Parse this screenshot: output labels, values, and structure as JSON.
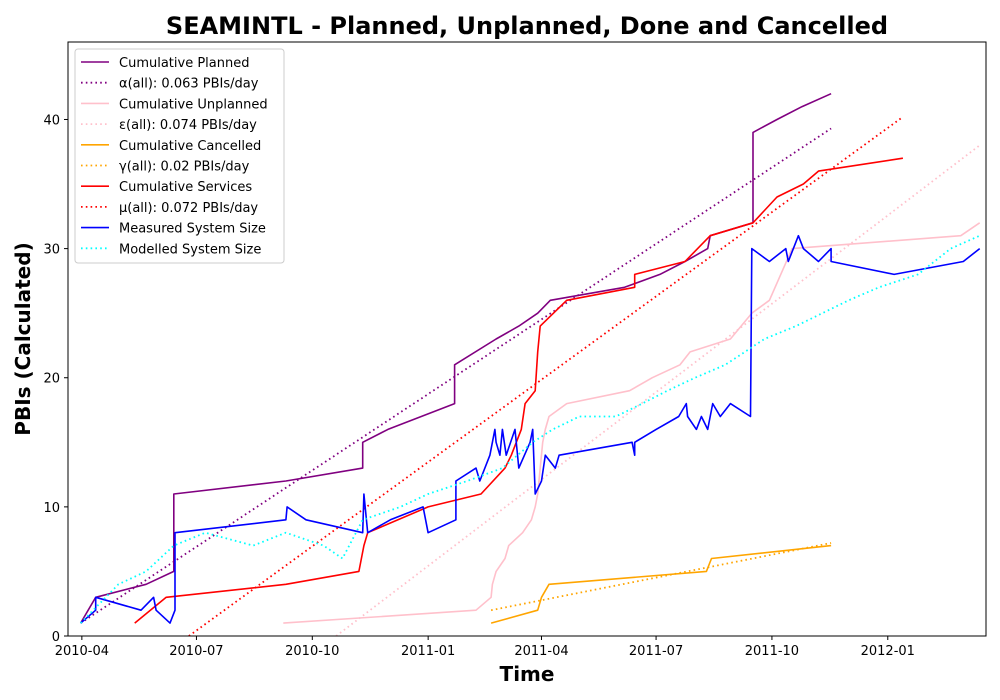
{
  "chart_data": {
    "type": "line",
    "title": "SEAMINTL - Planned, Unplanned, Done  and Cancelled",
    "xlabel": "Time",
    "ylabel": "PBIs (Calculated)",
    "xlim": [
      "2010-03-21",
      "2012-03-19"
    ],
    "ylim": [
      0,
      46
    ],
    "x_ticks": [
      "2010-04",
      "2010-07",
      "2010-10",
      "2011-01",
      "2011-04",
      "2011-07",
      "2011-10",
      "2012-01"
    ],
    "y_ticks": [
      0,
      10,
      20,
      30,
      40
    ],
    "grid": false,
    "legend_position": "top-left",
    "series": [
      {
        "name": "Cumulative Planned",
        "color": "#800080",
        "style": "solid",
        "points": [
          [
            "2010-03-31",
            1
          ],
          [
            "2010-04-12",
            3
          ],
          [
            "2010-05-22",
            4
          ],
          [
            "2010-06-13",
            5
          ],
          [
            "2010-06-13",
            11
          ],
          [
            "2010-09-10",
            12
          ],
          [
            "2010-11-10",
            13
          ],
          [
            "2010-11-10",
            15
          ],
          [
            "2010-11-30",
            16
          ],
          [
            "2011-01-22",
            18
          ],
          [
            "2011-01-22",
            21
          ],
          [
            "2011-02-24",
            23
          ],
          [
            "2011-03-14",
            24
          ],
          [
            "2011-03-29",
            25
          ],
          [
            "2011-04-08",
            26
          ],
          [
            "2011-06-06",
            27
          ],
          [
            "2011-07-04",
            28
          ],
          [
            "2011-07-24",
            29
          ],
          [
            "2011-08-11",
            30
          ],
          [
            "2011-08-13",
            31
          ],
          [
            "2011-09-16",
            32
          ],
          [
            "2011-09-16",
            39
          ],
          [
            "2011-10-05",
            40
          ],
          [
            "2011-10-25",
            41
          ],
          [
            "2011-11-17",
            42
          ]
        ]
      },
      {
        "name": "α(all): 0.063 PBIs/day",
        "color": "#800080",
        "style": "dotted",
        "points": [
          [
            "2010-03-31",
            1
          ],
          [
            "2011-11-17",
            39.3
          ]
        ]
      },
      {
        "name": "Cumulative Unplanned",
        "color": "#ffc0cb",
        "style": "solid",
        "points": [
          [
            "2010-09-08",
            1
          ],
          [
            "2011-02-08",
            2
          ],
          [
            "2011-02-20",
            3
          ],
          [
            "2011-02-21",
            4
          ],
          [
            "2011-02-24",
            5
          ],
          [
            "2011-03-03",
            6
          ],
          [
            "2011-03-06",
            7
          ],
          [
            "2011-03-17",
            8
          ],
          [
            "2011-03-24",
            9
          ],
          [
            "2011-03-27",
            10
          ],
          [
            "2011-03-29",
            11
          ],
          [
            "2011-03-31",
            13
          ],
          [
            "2011-04-02",
            15
          ],
          [
            "2011-04-04",
            16
          ],
          [
            "2011-04-07",
            17
          ],
          [
            "2011-04-21",
            18
          ],
          [
            "2011-06-10",
            19
          ],
          [
            "2011-06-28",
            20
          ],
          [
            "2011-07-20",
            21
          ],
          [
            "2011-07-28",
            22
          ],
          [
            "2011-08-29",
            23
          ],
          [
            "2011-09-15",
            25
          ],
          [
            "2011-09-29",
            26
          ],
          [
            "2011-10-17",
            30
          ],
          [
            "2012-02-28",
            31
          ],
          [
            "2012-03-14",
            32
          ]
        ]
      },
      {
        "name": "ε(all): 0.074 PBIs/day",
        "color": "#ffc0cb",
        "style": "dotted",
        "points": [
          [
            "2010-10-20",
            0
          ],
          [
            "2012-03-14",
            38
          ]
        ]
      },
      {
        "name": "Cumulative Cancelled",
        "color": "#ffa500",
        "style": "solid",
        "points": [
          [
            "2011-02-20",
            1
          ],
          [
            "2011-03-29",
            2
          ],
          [
            "2011-04-01",
            3
          ],
          [
            "2011-04-07",
            4
          ],
          [
            "2011-08-10",
            5
          ],
          [
            "2011-08-14",
            6
          ],
          [
            "2011-11-17",
            7
          ]
        ]
      },
      {
        "name": "γ(all): 0.02 PBIs/day",
        "color": "#ffa500",
        "style": "dotted",
        "points": [
          [
            "2011-02-20",
            2
          ],
          [
            "2011-11-17",
            7.2
          ]
        ]
      },
      {
        "name": "Cumulative Services",
        "color": "#ff0000",
        "style": "solid",
        "points": [
          [
            "2010-05-13",
            1
          ],
          [
            "2010-06-07",
            3
          ],
          [
            "2010-09-10",
            4
          ],
          [
            "2010-11-07",
            5
          ],
          [
            "2010-11-11",
            7
          ],
          [
            "2010-11-14",
            8
          ],
          [
            "2011-01-01",
            10
          ],
          [
            "2011-02-12",
            11
          ],
          [
            "2011-03-03",
            13
          ],
          [
            "2011-03-08",
            14
          ],
          [
            "2011-03-16",
            16
          ],
          [
            "2011-03-19",
            18
          ],
          [
            "2011-03-27",
            19
          ],
          [
            "2011-03-29",
            22
          ],
          [
            "2011-03-31",
            24
          ],
          [
            "2011-04-21",
            26
          ],
          [
            "2011-06-14",
            27
          ],
          [
            "2011-06-14",
            28
          ],
          [
            "2011-07-24",
            29
          ],
          [
            "2011-08-13",
            31
          ],
          [
            "2011-09-16",
            32
          ],
          [
            "2011-10-05",
            34
          ],
          [
            "2011-10-26",
            35
          ],
          [
            "2011-11-07",
            36
          ],
          [
            "2012-01-13",
            37
          ]
        ]
      },
      {
        "name": "μ(all): 0.072 PBIs/day",
        "color": "#ff0000",
        "style": "dotted",
        "points": [
          [
            "2010-06-25",
            0
          ],
          [
            "2012-01-13",
            40.2
          ]
        ]
      },
      {
        "name": "Measured System Size",
        "color": "#0000ff",
        "style": "solid",
        "points": [
          [
            "2010-03-31",
            1
          ],
          [
            "2010-04-12",
            2
          ],
          [
            "2010-04-12",
            3
          ],
          [
            "2010-05-18",
            2
          ],
          [
            "2010-05-28",
            3
          ],
          [
            "2010-05-30",
            2
          ],
          [
            "2010-06-10",
            1
          ],
          [
            "2010-06-14",
            2
          ],
          [
            "2010-06-14",
            8
          ],
          [
            "2010-09-10",
            9
          ],
          [
            "2010-09-11",
            10
          ],
          [
            "2010-09-26",
            9
          ],
          [
            "2010-11-10",
            8
          ],
          [
            "2010-11-11",
            11
          ],
          [
            "2010-11-14",
            8
          ],
          [
            "2010-12-02",
            9
          ],
          [
            "2010-12-28",
            10
          ],
          [
            "2010-12-30",
            9
          ],
          [
            "2011-01-01",
            8
          ],
          [
            "2011-01-23",
            9
          ],
          [
            "2011-01-23",
            12
          ],
          [
            "2011-02-08",
            13
          ],
          [
            "2011-02-11",
            12
          ],
          [
            "2011-02-19",
            14
          ],
          [
            "2011-02-23",
            16
          ],
          [
            "2011-02-24",
            15
          ],
          [
            "2011-02-27",
            14
          ],
          [
            "2011-03-01",
            16
          ],
          [
            "2011-03-04",
            14
          ],
          [
            "2011-03-11",
            16
          ],
          [
            "2011-03-14",
            13
          ],
          [
            "2011-03-23",
            15
          ],
          [
            "2011-03-25",
            16
          ],
          [
            "2011-03-27",
            11
          ],
          [
            "2011-04-01",
            12
          ],
          [
            "2011-04-04",
            14
          ],
          [
            "2011-04-12",
            13
          ],
          [
            "2011-04-15",
            14
          ],
          [
            "2011-06-12",
            15
          ],
          [
            "2011-06-14",
            14
          ],
          [
            "2011-06-14",
            15
          ],
          [
            "2011-07-01",
            16
          ],
          [
            "2011-07-19",
            17
          ],
          [
            "2011-07-25",
            18
          ],
          [
            "2011-07-26",
            17
          ],
          [
            "2011-08-02",
            16
          ],
          [
            "2011-08-06",
            17
          ],
          [
            "2011-08-11",
            16
          ],
          [
            "2011-08-15",
            18
          ],
          [
            "2011-08-21",
            17
          ],
          [
            "2011-08-29",
            18
          ],
          [
            "2011-09-14",
            17
          ],
          [
            "2011-09-15",
            30
          ],
          [
            "2011-09-29",
            29
          ],
          [
            "2011-10-12",
            30
          ],
          [
            "2011-10-14",
            29
          ],
          [
            "2011-10-22",
            31
          ],
          [
            "2011-10-26",
            30
          ],
          [
            "2011-11-07",
            29
          ],
          [
            "2011-11-17",
            30
          ],
          [
            "2011-11-17",
            29
          ],
          [
            "2012-01-06",
            28
          ],
          [
            "2012-03-01",
            29
          ],
          [
            "2012-03-14",
            30
          ]
        ]
      },
      {
        "name": "Modelled System Size",
        "color": "#00ffff",
        "style": "dotted",
        "points": [
          [
            "2010-03-31",
            1
          ],
          [
            "2010-04-30",
            4
          ],
          [
            "2010-05-22",
            5
          ],
          [
            "2010-06-13",
            7
          ],
          [
            "2010-07-08",
            8
          ],
          [
            "2010-08-15",
            7
          ],
          [
            "2010-09-10",
            8
          ],
          [
            "2010-10-10",
            7
          ],
          [
            "2010-10-25",
            6
          ],
          [
            "2010-11-10",
            9
          ],
          [
            "2010-12-10",
            10
          ],
          [
            "2011-01-01",
            11
          ],
          [
            "2011-02-01",
            12
          ],
          [
            "2011-03-01",
            13
          ],
          [
            "2011-03-25",
            15
          ],
          [
            "2011-04-10",
            16
          ],
          [
            "2011-05-01",
            17
          ],
          [
            "2011-05-30",
            17
          ],
          [
            "2011-06-20",
            18
          ],
          [
            "2011-07-10",
            19
          ],
          [
            "2011-08-01",
            20
          ],
          [
            "2011-08-25",
            21
          ],
          [
            "2011-09-25",
            23
          ],
          [
            "2011-10-20",
            24
          ],
          [
            "2011-11-10",
            25
          ],
          [
            "2011-12-01",
            26
          ],
          [
            "2011-12-25",
            27
          ],
          [
            "2012-01-25",
            28
          ],
          [
            "2012-02-20",
            30
          ],
          [
            "2012-03-14",
            31
          ]
        ]
      }
    ]
  }
}
